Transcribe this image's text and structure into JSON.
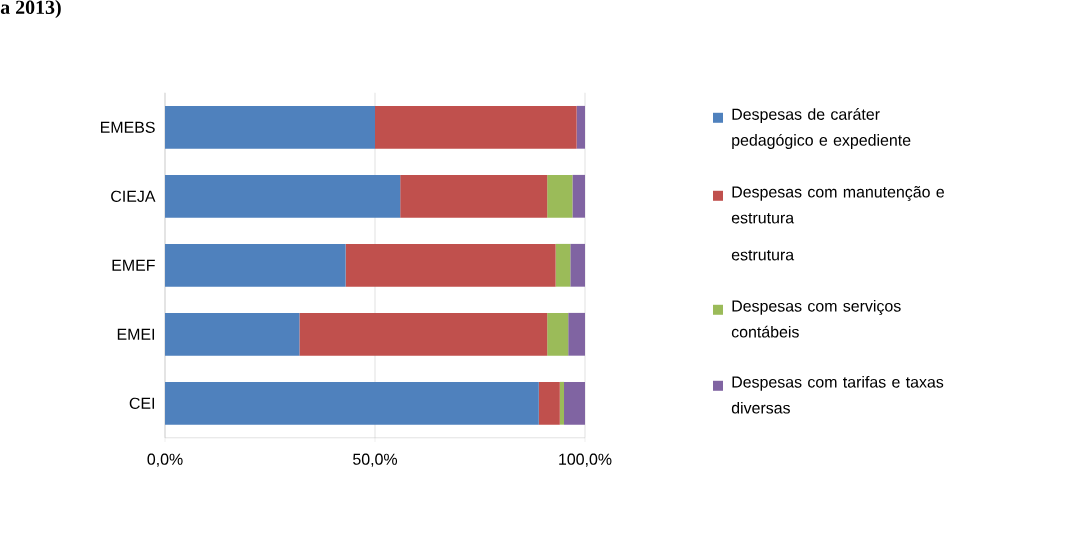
{
  "chart_data": {
    "type": "bar",
    "orientation": "horizontal",
    "stacked": true,
    "categories": [
      "EMEBS",
      "CIEJA",
      "EMEF",
      "EMEI",
      "CEI"
    ],
    "series": [
      {
        "name": "Despesas de caráter pedagógico e expediente",
        "color": "#4f81bd",
        "values": [
          50,
          56,
          43,
          32,
          89
        ]
      },
      {
        "name": "Despesas com manutenção e estrutura",
        "color": "#c0504d",
        "values": [
          48,
          35,
          50,
          59,
          5
        ]
      },
      {
        "name": "Despesas com serviços contábeis",
        "color": "#9bbb59",
        "values": [
          0,
          6,
          3.5,
          5,
          1
        ]
      },
      {
        "name": "Despesas com tarifas e taxas diversas",
        "color": "#8064a2",
        "values": [
          2,
          3,
          3.5,
          4,
          5
        ]
      }
    ],
    "xlim": [
      0,
      100
    ],
    "xticks": [
      {
        "value": 0,
        "label": "0,0%"
      },
      {
        "value": 50,
        "label": "50,0%"
      },
      {
        "value": 100,
        "label": "100,0%"
      }
    ],
    "grid": "x",
    "legend": "right",
    "annotations": [
      "a 2013)",
      "estrutura"
    ]
  }
}
